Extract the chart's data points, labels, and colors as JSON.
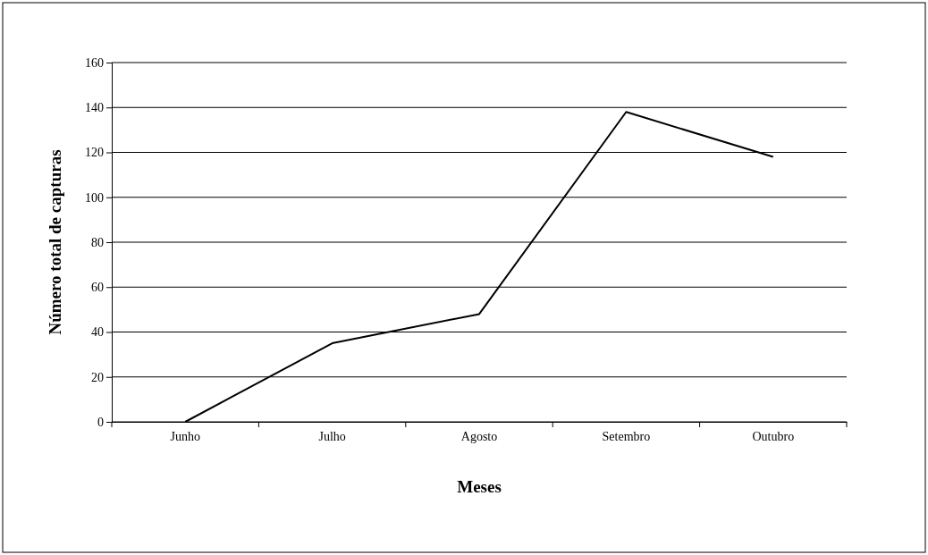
{
  "chart_data": {
    "type": "line",
    "xlabel": "Meses",
    "ylabel": "Número total de capturas",
    "categories": [
      "Junho",
      "Julho",
      "Agosto",
      "Setembro",
      "Outubro"
    ],
    "series": [
      {
        "color": "#000000",
        "values": [
          0,
          35,
          48,
          138,
          118
        ]
      }
    ],
    "ylim": [
      0,
      160
    ],
    "yticks": [
      0,
      20,
      40,
      60,
      80,
      100,
      120,
      140,
      160
    ],
    "grid": "y",
    "marker": "none",
    "line_style": "solid"
  }
}
